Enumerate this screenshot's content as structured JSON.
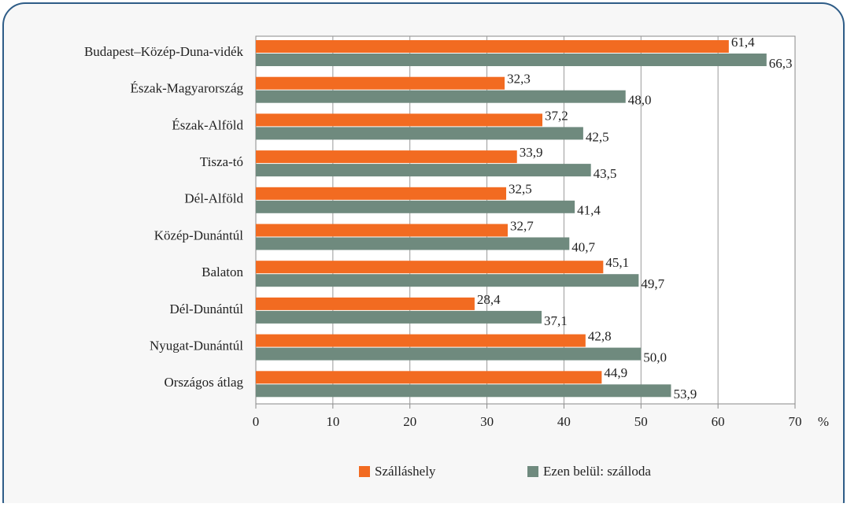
{
  "chart_data": {
    "type": "bar",
    "orientation": "horizontal",
    "categories": [
      "Budapest–Közép-Duna-vidék",
      "Észak-Magyarország",
      "Észak-Alföld",
      "Tisza-tó",
      "Dél-Alföld",
      "Közép-Dunántúl",
      "Balaton",
      "Dél-Dunántúl",
      "Nyugat-Dunántúl",
      "Országos átlag"
    ],
    "series": [
      {
        "name": "Szálláshely",
        "color": "#f26b21",
        "values": [
          61.4,
          32.3,
          37.2,
          33.9,
          32.5,
          32.7,
          45.1,
          28.4,
          42.8,
          44.9
        ],
        "value_labels": [
          "61,4",
          "32,3",
          "37,2",
          "33,9",
          "32,5",
          "32,7",
          "45,1",
          "28,4",
          "42,8",
          "44,9"
        ]
      },
      {
        "name": "Ezen belül: szálloda",
        "color": "#6f8a7e",
        "values": [
          66.3,
          48.0,
          42.5,
          43.5,
          41.4,
          40.7,
          49.7,
          37.1,
          50.0,
          53.9
        ],
        "value_labels": [
          "66,3",
          "48,0",
          "42,5",
          "43,5",
          "41,4",
          "40,7",
          "49,7",
          "37,1",
          "50,0",
          "53,9"
        ]
      }
    ],
    "xlim": [
      0,
      70
    ],
    "xticks": [
      0,
      10,
      20,
      30,
      40,
      50,
      60,
      70
    ],
    "x_label": "%",
    "grid": true,
    "legend": "bottom"
  }
}
